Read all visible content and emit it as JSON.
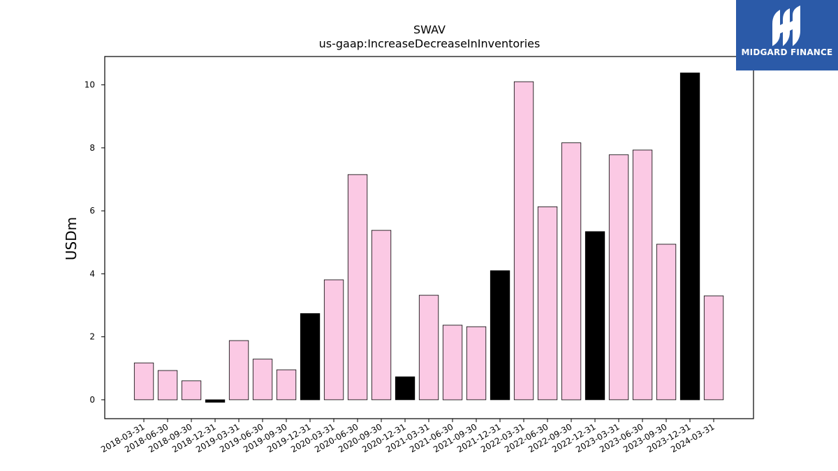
{
  "brand": {
    "name": "MIDGARD FINANCE",
    "logo_icon": "midgard-mm-logo-icon",
    "background": "#2b5aa8"
  },
  "colors": {
    "bar_default": "#fbc9e4",
    "bar_highlight": "#000000",
    "bar_edge": "#000000"
  },
  "chart_data": {
    "type": "bar",
    "title": "SWAV",
    "subtitle": "us-gaap:IncreaseDecreaseInInventories",
    "xlabel": "",
    "ylabel": "USDm",
    "ylim": [
      -0.6,
      10.9
    ],
    "yticks": [
      0,
      2,
      4,
      6,
      8,
      10
    ],
    "grid": false,
    "legend": "none",
    "categories": [
      "2018-03-31",
      "2018-06-30",
      "2018-09-30",
      "2018-12-31",
      "2019-03-31",
      "2019-06-30",
      "2019-09-30",
      "2019-12-31",
      "2020-03-31",
      "2020-06-30",
      "2020-09-30",
      "2020-12-31",
      "2021-03-31",
      "2021-06-30",
      "2021-09-30",
      "2021-12-31",
      "2022-03-31",
      "2022-06-30",
      "2022-09-30",
      "2022-12-31",
      "2023-03-31",
      "2023-06-30",
      "2023-09-30",
      "2023-12-31",
      "2024-03-31"
    ],
    "values": [
      1.17,
      0.93,
      0.6,
      -0.08,
      1.88,
      1.29,
      0.95,
      2.74,
      3.81,
      7.15,
      5.38,
      0.73,
      3.32,
      2.37,
      2.32,
      4.1,
      10.1,
      6.13,
      8.16,
      5.34,
      7.78,
      7.93,
      4.94,
      10.38,
      3.3
    ],
    "highlighted": [
      "2018-12-31",
      "2019-12-31",
      "2020-12-31",
      "2021-12-31",
      "2022-12-31",
      "2023-12-31"
    ]
  }
}
